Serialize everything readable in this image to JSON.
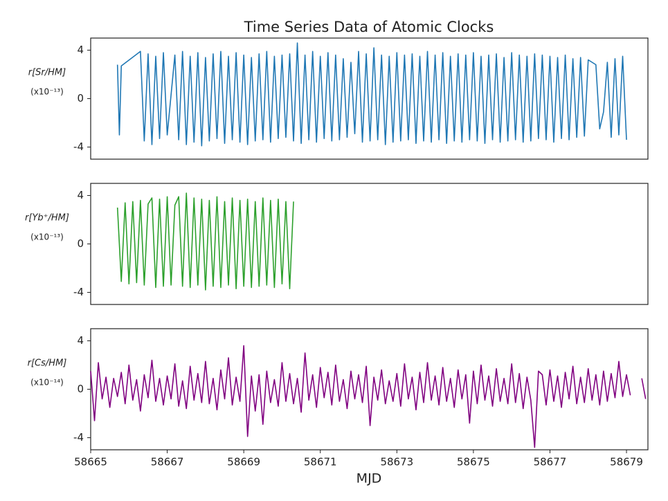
{
  "chart_data": [
    {
      "type": "line",
      "title": "Time Series Data of Atomic Clocks",
      "ylabel": "r[Sr/HM]",
      "yunit": "(x10⁻¹³)",
      "xlim": [
        58665,
        58679.56
      ],
      "ylim": [
        -5,
        5
      ],
      "yticks": [
        -4,
        0,
        4
      ],
      "series": [
        {
          "color": "#1f77b4",
          "x": [
            58665.7,
            58665.75,
            58665.8,
            58666.3,
            58666.4,
            58666.5,
            58666.6,
            58666.7,
            58666.8,
            58666.9,
            58667.0,
            58667.2,
            58667.3,
            58667.4,
            58667.5,
            58667.6,
            58667.7,
            58667.8,
            58667.9,
            58668.0,
            58668.1,
            58668.2,
            58668.3,
            58668.4,
            58668.5,
            58668.6,
            58668.7,
            58668.8,
            58668.9,
            58669.0,
            58669.1,
            58669.2,
            58669.3,
            58669.4,
            58669.5,
            58669.6,
            58669.7,
            58669.8,
            58669.9,
            58670.0,
            58670.1,
            58670.2,
            58670.3,
            58670.4,
            58670.5,
            58670.6,
            58670.7,
            58670.8,
            58670.9,
            58671.0,
            58671.1,
            58671.2,
            58671.3,
            58671.4,
            58671.5,
            58671.6,
            58671.7,
            58671.8,
            58671.9,
            58672.0,
            58672.1,
            58672.2,
            58672.3,
            58672.4,
            58672.5,
            58672.6,
            58672.7,
            58672.8,
            58672.9,
            58673.0,
            58673.1,
            58673.2,
            58673.3,
            58673.4,
            58673.5,
            58673.6,
            58673.7,
            58673.8,
            58673.9,
            58674.0,
            58674.1,
            58674.2,
            58674.3,
            58674.4,
            58674.5,
            58674.6,
            58674.7,
            58674.8,
            58674.9,
            58675.0,
            58675.1,
            58675.2,
            58675.3,
            58675.4,
            58675.5,
            58675.6,
            58675.7,
            58675.8,
            58675.9,
            58676.0,
            58676.1,
            58676.2,
            58676.3,
            58676.4,
            58676.5,
            58676.6,
            58676.7,
            58676.8,
            58676.9,
            58677.0,
            58677.1,
            58677.2,
            58677.3,
            58677.4,
            58677.5,
            58677.6,
            58677.7,
            58677.8,
            58677.9,
            58678.0,
            58678.2,
            58678.3,
            58678.4,
            58678.5,
            58678.6,
            58678.7,
            58678.8,
            58678.9,
            58679.0
          ],
          "values": [
            2.8,
            -3.0,
            2.7,
            3.9,
            -3.5,
            3.7,
            -3.8,
            3.5,
            -3.3,
            3.8,
            -3.0,
            3.6,
            -3.4,
            3.9,
            -3.8,
            3.5,
            -3.6,
            3.8,
            -3.9,
            3.4,
            -3.5,
            3.7,
            -3.3,
            3.9,
            -3.7,
            3.5,
            -3.4,
            3.8,
            -3.6,
            3.6,
            -3.8,
            3.4,
            -3.5,
            3.7,
            -3.4,
            3.9,
            -3.6,
            3.5,
            -3.3,
            3.6,
            -3.2,
            3.7,
            -3.5,
            4.6,
            -3.7,
            3.6,
            -3.4,
            3.9,
            -3.6,
            3.5,
            -3.3,
            3.8,
            -3.5,
            3.6,
            -3.4,
            3.3,
            -3.2,
            3.0,
            -2.9,
            3.9,
            -3.6,
            3.7,
            -3.5,
            4.2,
            -3.4,
            3.6,
            -3.8,
            3.5,
            -3.6,
            3.8,
            -3.5,
            3.6,
            -3.4,
            3.7,
            -3.7,
            3.5,
            -3.5,
            3.9,
            -3.6,
            3.6,
            -3.4,
            3.8,
            -3.7,
            3.5,
            -3.5,
            3.7,
            -3.6,
            3.6,
            -3.4,
            3.8,
            -3.5,
            3.5,
            -3.7,
            3.6,
            -3.4,
            3.7,
            -3.6,
            3.4,
            -3.5,
            3.8,
            -3.4,
            3.6,
            -3.6,
            3.5,
            -3.5,
            3.7,
            -3.3,
            3.6,
            -3.4,
            3.5,
            -3.6,
            3.4,
            -3.3,
            3.6,
            -3.4,
            3.3,
            -3.2,
            3.4,
            -3.1,
            3.2,
            2.8,
            -2.5,
            -1.1,
            3.0,
            -3.2,
            3.3,
            -3.0,
            3.5,
            -3.4
          ]
        }
      ]
    },
    {
      "type": "line",
      "ylabel": "r[Yb⁺/HM]",
      "yunit": "(x10⁻¹³)",
      "xlim": [
        58665,
        58679.56
      ],
      "ylim": [
        -5,
        5
      ],
      "yticks": [
        -4,
        0,
        4
      ],
      "series": [
        {
          "color": "#2ca02c",
          "x": [
            58665.7,
            58665.8,
            58665.9,
            58666.0,
            58666.1,
            58666.2,
            58666.3,
            58666.4,
            58666.5,
            58666.6,
            58666.7,
            58666.8,
            58666.9,
            58667.0,
            58667.1,
            58667.2,
            58667.3,
            58667.4,
            58667.5,
            58667.6,
            58667.7,
            58667.8,
            58667.9,
            58668.0,
            58668.1,
            58668.2,
            58668.3,
            58668.4,
            58668.5,
            58668.6,
            58668.7,
            58668.8,
            58668.9,
            58669.0,
            58669.1,
            58669.2,
            58669.3,
            58669.4,
            58669.5,
            58669.6,
            58669.7,
            58669.8,
            58669.9,
            58670.0,
            58670.1,
            58670.2,
            58670.3
          ],
          "values": [
            3.0,
            -3.1,
            3.4,
            -3.3,
            3.5,
            -3.2,
            3.6,
            -3.4,
            3.3,
            3.8,
            -3.6,
            3.7,
            -3.5,
            3.9,
            -3.4,
            3.2,
            3.9,
            -3.5,
            4.2,
            -3.6,
            3.8,
            -3.4,
            3.7,
            -3.8,
            3.6,
            -3.5,
            3.9,
            -3.6,
            3.5,
            -3.4,
            3.8,
            -3.7,
            3.6,
            -3.5,
            3.7,
            -3.6,
            3.5,
            -3.5,
            3.8,
            -3.4,
            3.6,
            -3.6,
            3.7,
            -3.3,
            3.5,
            -3.7,
            3.5
          ]
        }
      ]
    },
    {
      "type": "line",
      "ylabel": "r[Cs/HM]",
      "yunit": "(x10⁻¹⁴)",
      "xlabel": "MJD",
      "xlim": [
        58665,
        58679.56
      ],
      "ylim": [
        -5,
        5
      ],
      "yticks": [
        -4,
        0,
        4
      ],
      "xticks": [
        58665,
        58667,
        58669,
        58671,
        58673,
        58675,
        58677,
        58679
      ],
      "series": [
        {
          "color": "#800080",
          "x": [
            58665.0,
            58665.1,
            58665.2,
            58665.3,
            58665.4,
            58665.5,
            58665.6,
            58665.7,
            58665.8,
            58665.9,
            58666.0,
            58666.1,
            58666.2,
            58666.3,
            58666.4,
            58666.5,
            58666.6,
            58666.7,
            58666.8,
            58666.9,
            58667.0,
            58667.1,
            58667.2,
            58667.3,
            58667.4,
            58667.5,
            58667.6,
            58667.7,
            58667.8,
            58667.9,
            58668.0,
            58668.1,
            58668.2,
            58668.3,
            58668.4,
            58668.5,
            58668.6,
            58668.7,
            58668.8,
            58668.9,
            58669.0,
            58669.1,
            58669.2,
            58669.3,
            58669.4,
            58669.5,
            58669.6,
            58669.7,
            58669.8,
            58669.9,
            58670.0,
            58670.1,
            58670.2,
            58670.3,
            58670.4,
            58670.5,
            58670.6,
            58670.7,
            58670.8,
            58670.9,
            58671.0,
            58671.1,
            58671.2,
            58671.3,
            58671.4,
            58671.5,
            58671.6,
            58671.7,
            58671.8,
            58671.9,
            58672.0,
            58672.1,
            58672.2,
            58672.3,
            58672.4,
            58672.5,
            58672.6,
            58672.7,
            58672.8,
            58672.9,
            58673.0,
            58673.1,
            58673.2,
            58673.3,
            58673.4,
            58673.5,
            58673.6,
            58673.7,
            58673.8,
            58673.9,
            58674.0,
            58674.1,
            58674.2,
            58674.3,
            58674.4,
            58674.5,
            58674.6,
            58674.7,
            58674.8,
            58674.9,
            58675.0,
            58675.1,
            58675.2,
            58675.3,
            58675.4,
            58675.5,
            58675.6,
            58675.7,
            58675.8,
            58675.9,
            58676.0,
            58676.1,
            58676.2,
            58676.3,
            58676.4,
            58676.5,
            58676.6,
            58676.7,
            58676.8,
            58676.9,
            58677.0,
            58677.1,
            58677.2,
            58677.3,
            58677.4,
            58677.5,
            58677.6,
            58677.7,
            58677.8,
            58677.9,
            58678.0,
            58678.1,
            58678.2,
            58678.3,
            58678.4,
            58678.5,
            58678.6,
            58678.7,
            58678.8,
            58678.9,
            58679.0,
            58679.1,
            58679.2,
            58679.4,
            58679.5
          ],
          "values": [
            1.5,
            -2.6,
            2.2,
            -0.8,
            1.0,
            -1.5,
            0.9,
            -0.6,
            1.4,
            -1.2,
            2.0,
            -0.9,
            0.8,
            -1.8,
            1.2,
            -0.7,
            2.4,
            -1.0,
            0.9,
            -1.3,
            1.1,
            -0.8,
            2.1,
            -1.4,
            0.7,
            -1.6,
            1.9,
            -0.9,
            1.3,
            -1.1,
            2.3,
            -1.2,
            0.9,
            -1.7,
            1.6,
            -0.8,
            2.6,
            -1.3,
            1.0,
            -1.0,
            3.6,
            -3.9,
            1.1,
            -1.8,
            1.2,
            -2.9,
            1.5,
            -1.1,
            0.8,
            -1.4,
            2.2,
            -1.0,
            1.3,
            -1.2,
            0.9,
            -1.9,
            3.0,
            -0.9,
            1.2,
            -1.5,
            1.8,
            -0.7,
            1.4,
            -1.3,
            2.0,
            -1.0,
            0.8,
            -1.6,
            1.5,
            -0.8,
            1.2,
            -1.1,
            1.9,
            -3.0,
            1.0,
            -0.9,
            1.6,
            -1.2,
            0.7,
            -1.0,
            1.3,
            -1.4,
            2.1,
            -0.8,
            1.0,
            -1.7,
            1.4,
            -1.1,
            2.2,
            -0.9,
            1.1,
            -1.3,
            1.8,
            -1.0,
            0.9,
            -1.5,
            1.6,
            -0.8,
            1.2,
            -2.8,
            1.5,
            -1.2,
            2.0,
            -0.9,
            1.1,
            -1.4,
            1.7,
            -1.0,
            0.9,
            -1.2,
            2.1,
            -1.1,
            1.3,
            -1.6,
            1.0,
            -0.9,
            -4.8,
            1.5,
            1.2,
            -1.3,
            1.6,
            -1.0,
            1.1,
            -1.5,
            1.4,
            -0.8,
            1.9,
            -1.2,
            1.0,
            -1.1,
            1.7,
            -0.9,
            1.2,
            -1.3,
            1.5,
            -1.0,
            1.3,
            -0.7,
            2.3,
            -0.6,
            1.2,
            -0.5,
            null,
            0.9,
            -0.8
          ]
        }
      ]
    }
  ]
}
